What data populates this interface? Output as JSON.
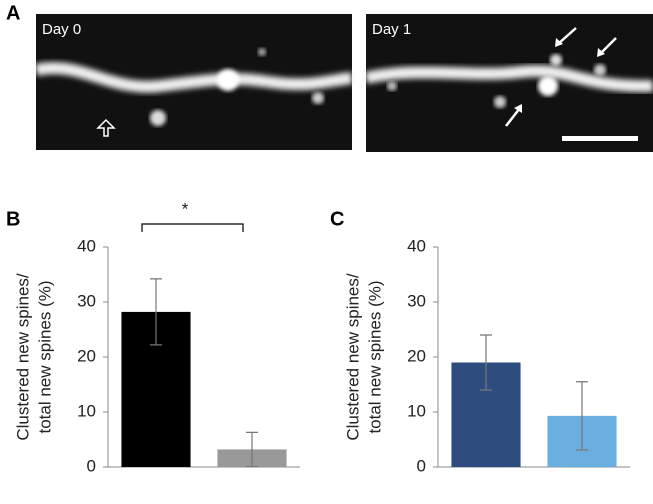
{
  "panel_labels": [
    "A",
    "B",
    "C"
  ],
  "images": [
    {
      "label": "Day 0"
    },
    {
      "label": "Day 1"
    }
  ],
  "chart_data": [
    {
      "type": "bar",
      "ylabel": [
        "Clustered new spines/",
        "total new spines (%)"
      ],
      "categories": [
        null,
        null
      ],
      "values": [
        28.2,
        3.2
      ],
      "errors": [
        6.0,
        3.1
      ],
      "colors": [
        "#000000",
        "#999999"
      ],
      "annotation": "*",
      "ylim": [
        0,
        40
      ],
      "yticks": [
        0,
        10,
        20,
        30,
        40
      ]
    },
    {
      "type": "bar",
      "ylabel": [
        "Clustered new spines/",
        "total new spines (%)"
      ],
      "categories": [
        null,
        null
      ],
      "values": [
        19.0,
        9.3
      ],
      "errors": [
        5.0,
        6.2
      ],
      "colors": [
        "#2e4d7e",
        "#6aaee0"
      ],
      "ylim": [
        0,
        40
      ],
      "yticks": [
        0,
        10,
        20,
        30,
        40
      ]
    }
  ]
}
